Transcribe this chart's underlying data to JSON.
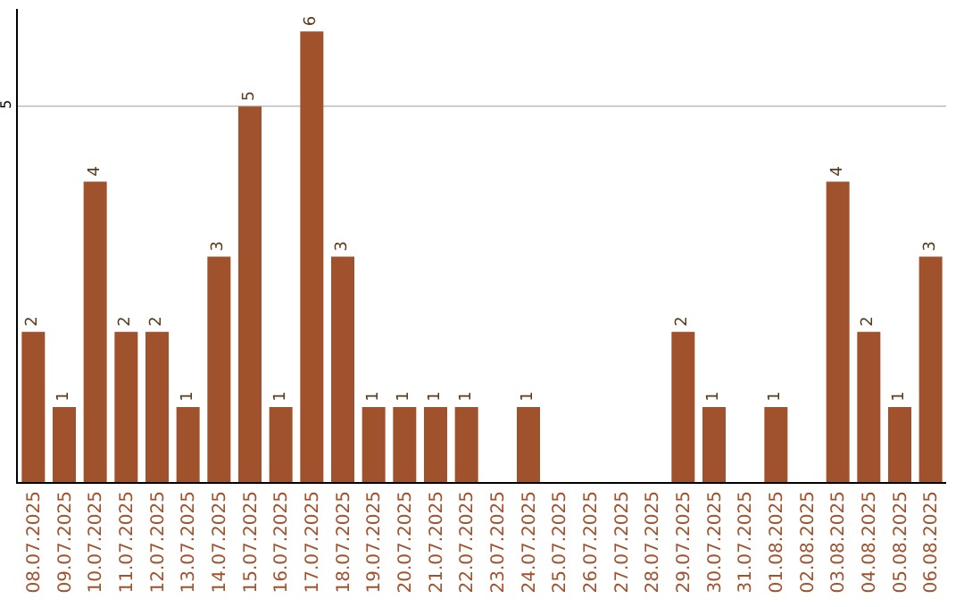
{
  "chart_data": {
    "type": "bar",
    "categories": [
      "08.07.2025",
      "09.07.2025",
      "10.07.2025",
      "11.07.2025",
      "12.07.2025",
      "13.07.2025",
      "14.07.2025",
      "15.07.2025",
      "16.07.2025",
      "17.07.2025",
      "18.07.2025",
      "19.07.2025",
      "20.07.2025",
      "21.07.2025",
      "22.07.2025",
      "23.07.2025",
      "24.07.2025",
      "25.07.2025",
      "26.07.2025",
      "27.07.2025",
      "28.07.2025",
      "29.07.2025",
      "30.07.2025",
      "31.07.2025",
      "01.08.2025",
      "02.08.2025",
      "03.08.2025",
      "04.08.2025",
      "05.08.2025",
      "06.08.2025"
    ],
    "values": [
      2,
      1,
      4,
      2,
      2,
      1,
      3,
      5,
      1,
      6,
      3,
      1,
      1,
      1,
      1,
      0,
      1,
      0,
      0,
      0,
      0,
      2,
      1,
      0,
      1,
      0,
      4,
      2,
      1,
      3
    ],
    "value_labels": [
      "2",
      "1",
      "4",
      "2",
      "2",
      "1",
      "3",
      "5",
      "1",
      "6",
      "3",
      "1",
      "1",
      "1",
      "1",
      null,
      "1",
      null,
      null,
      null,
      null,
      "2",
      "1",
      null,
      "1",
      null,
      "4",
      "2",
      "1",
      "3"
    ],
    "color": "#a0522d",
    "ylim": [
      0,
      6.3
    ],
    "yticks": [
      5
    ],
    "grid": "y"
  }
}
